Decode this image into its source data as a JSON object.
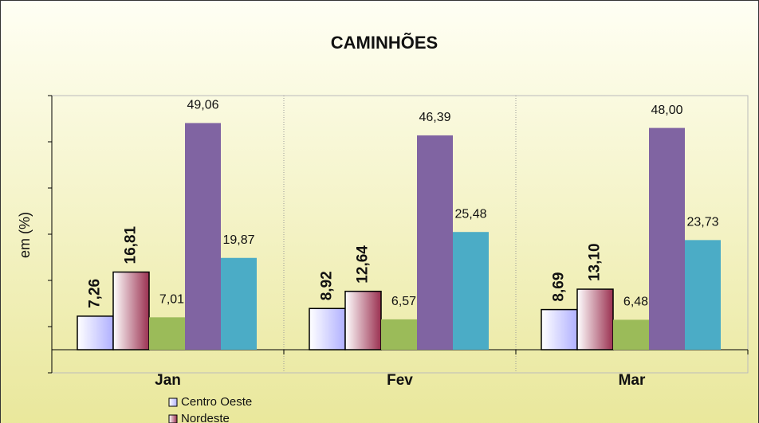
{
  "chart_data": {
    "type": "bar",
    "title": "CAMINHÕES",
    "y_label": "em (%)",
    "categories": [
      "Jan",
      "Fev",
      "Mar"
    ],
    "series": [
      {
        "name": "Centro Oeste",
        "color": "#b0b0ff",
        "values": [
          7.26,
          8.92,
          8.69
        ],
        "value_labels": [
          "7,26",
          "8,92",
          "8,69"
        ]
      },
      {
        "name": "Nordeste",
        "color": "#9a3050",
        "values": [
          16.81,
          12.64,
          13.1
        ],
        "value_labels": [
          "16,81",
          "12,64",
          "13,10"
        ]
      },
      {
        "color": "#9bbb59",
        "values": [
          7.01,
          6.57,
          6.48
        ],
        "value_labels": [
          "7,01",
          "6,57",
          "6,48"
        ]
      },
      {
        "color": "#8064a2",
        "values": [
          49.06,
          46.39,
          48.0
        ],
        "value_labels": [
          "49,06",
          "46,39",
          "48,00"
        ]
      },
      {
        "color": "#4bacc6",
        "values": [
          19.87,
          25.48,
          23.73
        ],
        "value_labels": [
          "19,87",
          "25,48",
          "23,73"
        ]
      }
    ],
    "ylim": [
      -5,
      55
    ],
    "yticks": [
      -5,
      5,
      15,
      25,
      35,
      45,
      55
    ]
  }
}
